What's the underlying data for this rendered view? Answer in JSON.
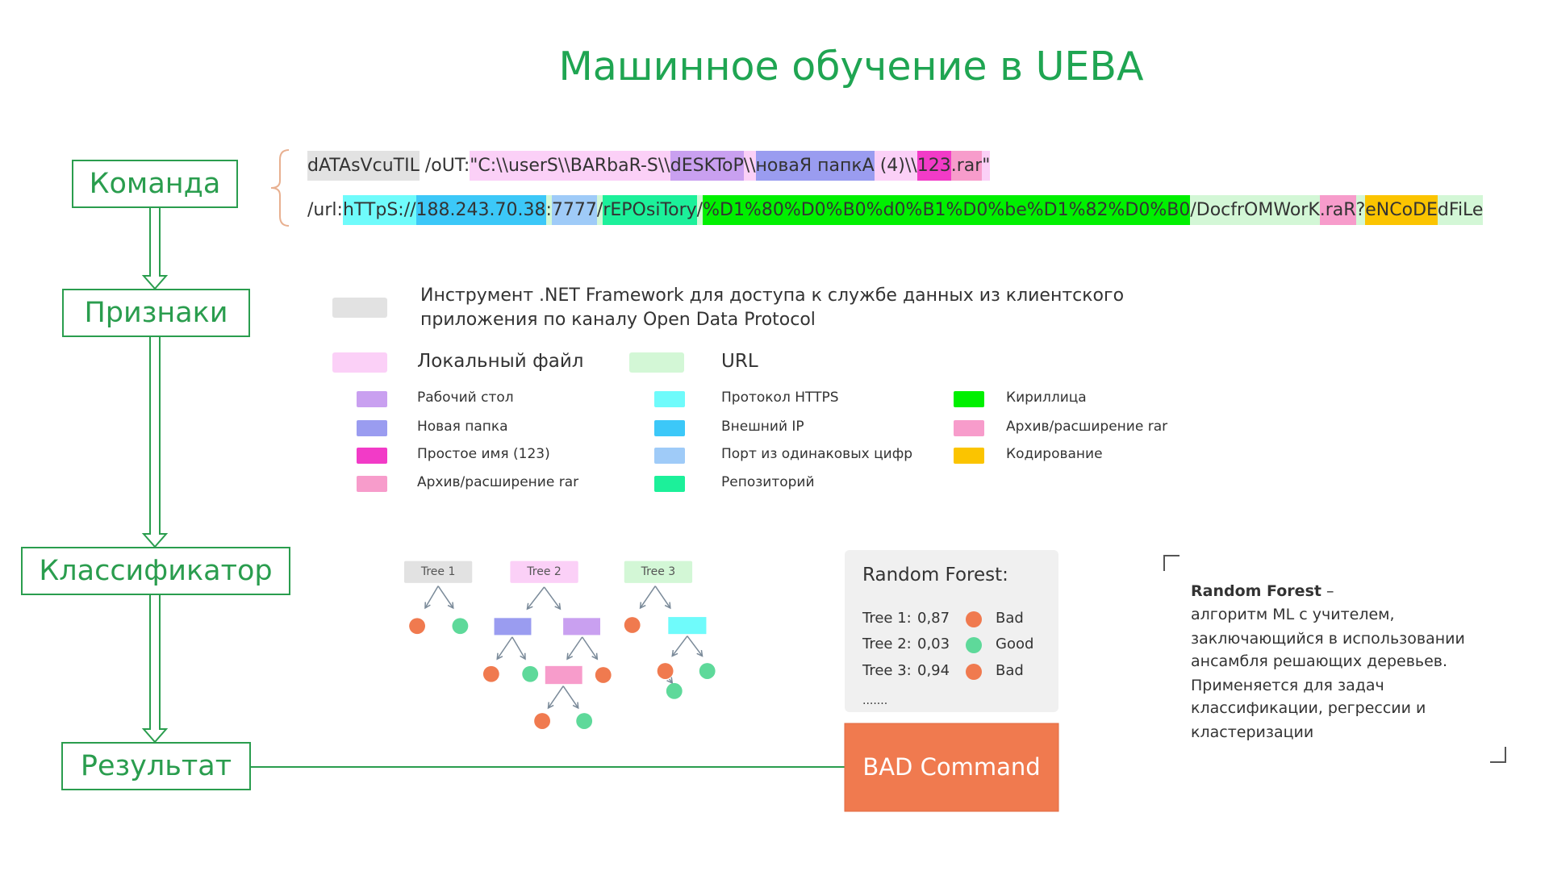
{
  "title": "Машинное обучение в UEBA",
  "flow": [
    "Команда",
    "Признаки",
    "Классификатор",
    "Результат"
  ],
  "command": {
    "line1": [
      {
        "text": "dATAsVcuTIL",
        "color": "#e2e2e2"
      },
      {
        "text": " /oUT:",
        "color": null
      },
      {
        "text": "\"C:\\\\userS\\\\BARbaR-S\\\\",
        "color": "#fbd0f7"
      },
      {
        "text": "dESKToP",
        "color": "#c9a0f0"
      },
      {
        "text": "\\\\",
        "color": "#fbd0f7"
      },
      {
        "text": "новаЯ папкА",
        "color": "#9a9cf0"
      },
      {
        "text": " (4)\\\\",
        "color": "#fbd0f7"
      },
      {
        "text": "123",
        "color": "#f23bc7"
      },
      {
        "text": ".rar",
        "color": "#f79ccb"
      },
      {
        "text": "\"",
        "color": "#fbd0f7"
      }
    ],
    "line2": [
      {
        "text": "/url:",
        "color": null
      },
      {
        "text": "hTTpS://",
        "color": "#6ffbfb"
      },
      {
        "text": "188.243.70.38",
        "color": "#3cc8f8"
      },
      {
        "text": ":",
        "color": "#d3f7d6"
      },
      {
        "text": "7777",
        "color": "#9fcbf8"
      },
      {
        "text": "/",
        "color": "#d3f7d6"
      },
      {
        "text": "rEPOsiTory",
        "color": "#1cf09a"
      },
      {
        "text": "/",
        "color": "#d3f7d6"
      },
      {
        "text": "%D1%80%D0%B0%d0%B1%D0%be%D1%82%D0%B0",
        "color": "#00f000"
      },
      {
        "text": "/DocfrOMWorK",
        "color": "#d3f7d6"
      },
      {
        "text": ".raR",
        "color": "#f79ccb"
      },
      {
        "text": "?",
        "color": "#d3f7d6"
      },
      {
        "text": "eNCoDE",
        "color": "#fbc400"
      },
      {
        "text": "dFiLe",
        "color": "#d3f7d6"
      }
    ]
  },
  "legend": {
    "tool": {
      "color": "#e2e2e2",
      "lines": [
        "Инструмент .NET Framework для доступа к службе данных из клиентского",
        "приложения по каналу Open Data Protocol"
      ]
    },
    "groups": [
      {
        "label": "Локальный файл",
        "color": "#fbd0f7"
      },
      {
        "label": "URL",
        "color": "#d3f7d6"
      }
    ],
    "columns": [
      [
        {
          "label": "Рабочий стол",
          "color": "#c9a0f0"
        },
        {
          "label": "Новая папка",
          "color": "#9a9cf0"
        },
        {
          "label": "Простое имя (123)",
          "color": "#f23bc7"
        },
        {
          "label": "Архив/расширение rar",
          "color": "#f79ccb"
        }
      ],
      [
        {
          "label": "Протокол HTTPS",
          "color": "#6ffbfb"
        },
        {
          "label": "Внешний IP",
          "color": "#3cc8f8"
        },
        {
          "label": "Порт из одинаковых цифр",
          "color": "#9fcbf8"
        },
        {
          "label": "Репозиторий",
          "color": "#1cf09a"
        }
      ],
      [
        {
          "label": "Кириллица",
          "color": "#00f000"
        },
        {
          "label": "Архив/расширение rar",
          "color": "#f79ccb"
        },
        {
          "label": "Кодирование",
          "color": "#fbc400"
        }
      ]
    ]
  },
  "trees": [
    {
      "label": "Tree 1",
      "color": "#e2e2e2"
    },
    {
      "label": "Tree 2",
      "color": "#fbd0f7"
    },
    {
      "label": "Tree 3",
      "color": "#d3f7d6"
    }
  ],
  "forest": {
    "title": "Random Forest:",
    "rows": [
      {
        "tree": "Tree 1:",
        "score": "0,87",
        "verdict": "Bad",
        "color": "#f07a4f"
      },
      {
        "tree": "Tree 2:",
        "score": "0,03",
        "verdict": "Good",
        "color": "#5ed99a"
      },
      {
        "tree": "Tree 3:",
        "score": "0,94",
        "verdict": "Bad",
        "color": "#f07a4f"
      }
    ],
    "more": "......."
  },
  "result": "BAD Command",
  "note": {
    "term": "Random Forest",
    "dash": " –",
    "lines": [
      "алгоритм ML с учителем,",
      "заключающийся в использовании",
      "ансамбля решающих деревьев.",
      "Применяется для задач",
      "классификации, регрессии и",
      "кластеризации"
    ]
  }
}
